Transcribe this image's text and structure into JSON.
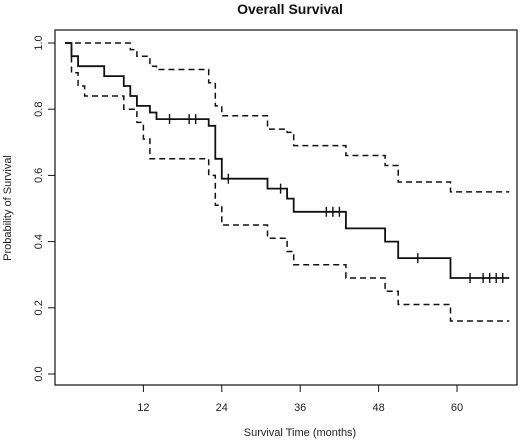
{
  "chart_data": {
    "type": "line",
    "title": "Overall Survival",
    "xlabel": "Survival Time (months)",
    "ylabel": "Probability of Survival",
    "xlim": [
      0,
      69
    ],
    "ylim": [
      0,
      1.0
    ],
    "x_ticks": [
      12,
      24,
      36,
      48,
      60
    ],
    "x_tick_labels": [
      "12",
      "24",
      "36",
      "48",
      "60"
    ],
    "y_ticks": [
      0.0,
      0.2,
      0.4,
      0.6,
      0.8,
      1.0
    ],
    "y_tick_labels": [
      "0.0",
      "0.2",
      "0.4",
      "0.6",
      "0.8",
      "1.0"
    ],
    "grid": false,
    "series": [
      {
        "style": "solid",
        "points": [
          [
            0,
            1.0
          ],
          [
            1,
            1.0
          ],
          [
            1,
            0.96
          ],
          [
            2,
            0.96
          ],
          [
            2,
            0.93
          ],
          [
            6,
            0.93
          ],
          [
            6,
            0.9
          ],
          [
            9,
            0.9
          ],
          [
            9,
            0.87
          ],
          [
            10,
            0.87
          ],
          [
            10,
            0.84
          ],
          [
            11,
            0.84
          ],
          [
            11,
            0.81
          ],
          [
            13,
            0.81
          ],
          [
            13,
            0.79
          ],
          [
            14,
            0.79
          ],
          [
            14,
            0.77
          ],
          [
            22,
            0.77
          ],
          [
            22,
            0.75
          ],
          [
            23,
            0.75
          ],
          [
            23,
            0.65
          ],
          [
            24,
            0.65
          ],
          [
            24,
            0.59
          ],
          [
            31,
            0.59
          ],
          [
            31,
            0.56
          ],
          [
            34,
            0.56
          ],
          [
            34,
            0.53
          ],
          [
            35,
            0.53
          ],
          [
            35,
            0.49
          ],
          [
            43,
            0.49
          ],
          [
            43,
            0.44
          ],
          [
            49,
            0.44
          ],
          [
            49,
            0.4
          ],
          [
            51,
            0.4
          ],
          [
            51,
            0.35
          ],
          [
            59,
            0.35
          ],
          [
            59,
            0.29
          ],
          [
            68,
            0.29
          ]
        ],
        "censor_marks": [
          [
            16,
            0.77
          ],
          [
            19,
            0.77
          ],
          [
            20,
            0.77
          ],
          [
            25,
            0.59
          ],
          [
            33,
            0.56
          ],
          [
            40,
            0.49
          ],
          [
            41,
            0.49
          ],
          [
            42,
            0.49
          ],
          [
            54,
            0.35
          ],
          [
            62,
            0.29
          ],
          [
            64,
            0.29
          ],
          [
            65,
            0.29
          ],
          [
            66,
            0.29
          ],
          [
            67,
            0.29
          ]
        ]
      },
      {
        "style": "dashed",
        "points": [
          [
            0,
            1.0
          ],
          [
            1,
            1.0
          ],
          [
            1,
            0.91
          ],
          [
            2,
            0.91
          ],
          [
            2,
            0.87
          ],
          [
            3,
            0.87
          ],
          [
            3,
            0.84
          ],
          [
            9,
            0.84
          ],
          [
            9,
            0.8
          ],
          [
            11,
            0.8
          ],
          [
            11,
            0.76
          ],
          [
            12,
            0.76
          ],
          [
            12,
            0.71
          ],
          [
            13,
            0.71
          ],
          [
            13,
            0.65
          ],
          [
            22,
            0.65
          ],
          [
            22,
            0.6
          ],
          [
            23,
            0.6
          ],
          [
            23,
            0.51
          ],
          [
            24,
            0.51
          ],
          [
            24,
            0.45
          ],
          [
            31,
            0.45
          ],
          [
            31,
            0.41
          ],
          [
            34,
            0.41
          ],
          [
            34,
            0.37
          ],
          [
            35,
            0.37
          ],
          [
            35,
            0.33
          ],
          [
            43,
            0.33
          ],
          [
            43,
            0.29
          ],
          [
            49,
            0.29
          ],
          [
            49,
            0.25
          ],
          [
            51,
            0.25
          ],
          [
            51,
            0.21
          ],
          [
            59,
            0.21
          ],
          [
            59,
            0.16
          ],
          [
            68,
            0.16
          ]
        ]
      },
      {
        "style": "dashed",
        "points": [
          [
            0,
            1.0
          ],
          [
            10,
            1.0
          ],
          [
            10,
            0.98
          ],
          [
            11,
            0.98
          ],
          [
            11,
            0.96
          ],
          [
            13,
            0.96
          ],
          [
            13,
            0.93
          ],
          [
            14,
            0.93
          ],
          [
            14,
            0.92
          ],
          [
            22,
            0.92
          ],
          [
            22,
            0.88
          ],
          [
            23,
            0.88
          ],
          [
            23,
            0.81
          ],
          [
            24,
            0.81
          ],
          [
            24,
            0.78
          ],
          [
            31,
            0.78
          ],
          [
            31,
            0.74
          ],
          [
            34,
            0.74
          ],
          [
            34,
            0.73
          ],
          [
            35,
            0.73
          ],
          [
            35,
            0.69
          ],
          [
            43,
            0.69
          ],
          [
            43,
            0.66
          ],
          [
            49,
            0.66
          ],
          [
            49,
            0.63
          ],
          [
            51,
            0.63
          ],
          [
            51,
            0.58
          ],
          [
            59,
            0.58
          ],
          [
            59,
            0.55
          ],
          [
            68,
            0.55
          ]
        ]
      }
    ]
  }
}
